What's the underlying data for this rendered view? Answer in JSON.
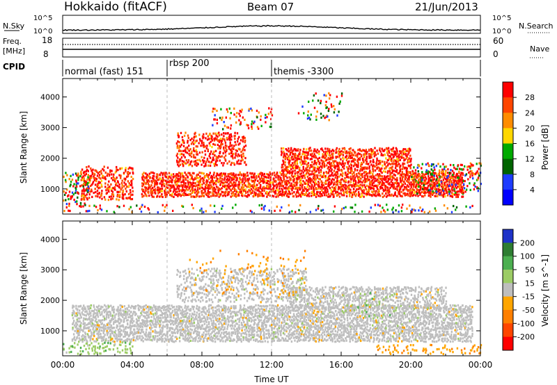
{
  "header": {
    "station": "Hokkaido (fitACF)",
    "beam": "Beam 07",
    "date": "21/Jun/2013"
  },
  "noise_panel": {
    "left_label": "N.Sky",
    "left_ticks": [
      "10^5",
      "10^0"
    ],
    "right_ticks": [
      "10^5",
      "10^0"
    ],
    "right_label": "N.Search"
  },
  "freq_panel": {
    "left_label_1": "Freq.",
    "left_label_2": "[MHz]",
    "left_ticks": [
      "18",
      "8"
    ],
    "right_ticks": [
      "60",
      "0"
    ],
    "right_label": "Nave"
  },
  "cpid_panel": {
    "label": "CPID",
    "segments": [
      {
        "label": "normal (fast) 151",
        "start_hour": 0
      },
      {
        "label": "rbsp 200",
        "start_hour": 6
      },
      {
        "label": "themis -3300",
        "start_hour": 12
      }
    ]
  },
  "chart_data": [
    {
      "type": "heatmap",
      "name": "power",
      "ylabel": "Slant Range [km]",
      "yticks": [
        1000,
        2000,
        3000,
        4000
      ],
      "ylim": [
        180,
        4600
      ],
      "xlim": [
        0,
        24
      ],
      "colorbar_label": "Power [dB]",
      "colorbar_ticks": [
        "28",
        "24",
        "20",
        "16",
        "12",
        "8",
        "4"
      ],
      "colorbar_colors": [
        "#ff0000",
        "#ff4500",
        "#ff8c00",
        "#ffd700",
        "#00aa00",
        "#006400",
        "#1e3cff",
        "#0000ff"
      ],
      "blobs": [
        {
          "t0": 4.5,
          "t1": 23.0,
          "r0": 700,
          "r1": 1500,
          "density": 0.9,
          "level": "strong"
        },
        {
          "t0": 1.0,
          "t1": 4.0,
          "r0": 600,
          "r1": 1700,
          "density": 0.55,
          "level": "strong"
        },
        {
          "t0": 6.5,
          "t1": 10.5,
          "r0": 1700,
          "r1": 2800,
          "density": 0.55,
          "level": "strong"
        },
        {
          "t0": 12.5,
          "t1": 20.0,
          "r0": 1500,
          "r1": 2300,
          "density": 0.8,
          "level": "strong"
        },
        {
          "t0": 0.0,
          "t1": 1.5,
          "r0": 400,
          "r1": 1500,
          "density": 0.4,
          "level": "weak"
        },
        {
          "t0": 8.5,
          "t1": 12.0,
          "r0": 2900,
          "r1": 3600,
          "density": 0.2,
          "level": "weak"
        },
        {
          "t0": 13.5,
          "t1": 16.0,
          "r0": 3200,
          "r1": 4100,
          "density": 0.12,
          "level": "weak"
        },
        {
          "t0": 20.0,
          "t1": 24.0,
          "r0": 800,
          "r1": 1800,
          "density": 0.35,
          "level": "weak"
        },
        {
          "t0": 0.0,
          "t1": 24.0,
          "r0": 200,
          "r1": 450,
          "density": 0.2,
          "level": "weak"
        }
      ]
    },
    {
      "type": "heatmap",
      "name": "velocity",
      "ylabel": "Slant Range [km]",
      "yticks": [
        1000,
        2000,
        3000,
        4000
      ],
      "ylim": [
        180,
        4600
      ],
      "xlim": [
        0,
        24
      ],
      "xlabel": "Time UT",
      "xticks": [
        "00:00",
        "04:00",
        "08:00",
        "12:00",
        "16:00",
        "20:00",
        "00:00"
      ],
      "colorbar_label": "Velocity [m s^-1]",
      "colorbar_ticks": [
        "200",
        "100",
        "50",
        "15",
        "-15",
        "-50",
        "-100",
        "-200"
      ],
      "colorbar_colors": [
        "#1e32c8",
        "#2e7d32",
        "#4caf50",
        "#9ccc65",
        "#bebebe",
        "#ffa500",
        "#ff7f00",
        "#ff4500",
        "#ff0000"
      ],
      "blobs": [
        {
          "t0": 0.5,
          "t1": 23.5,
          "r0": 600,
          "r1": 1800,
          "density": 0.85,
          "level": "ground"
        },
        {
          "t0": 6.5,
          "t1": 14.0,
          "r0": 1900,
          "r1": 3000,
          "density": 0.45,
          "level": "ground"
        },
        {
          "t0": 13.0,
          "t1": 22.0,
          "r0": 1700,
          "r1": 2400,
          "density": 0.6,
          "level": "ground"
        },
        {
          "t0": 0.0,
          "t1": 4.0,
          "r0": 200,
          "r1": 600,
          "density": 0.35,
          "level": "green"
        },
        {
          "t0": 16.0,
          "t1": 19.0,
          "r0": 1400,
          "r1": 2200,
          "density": 0.12,
          "level": "green"
        },
        {
          "t0": 7.0,
          "t1": 14.0,
          "r0": 2000,
          "r1": 3600,
          "density": 0.05,
          "level": "orange"
        },
        {
          "t0": 18.0,
          "t1": 24.0,
          "r0": 200,
          "r1": 500,
          "density": 0.25,
          "level": "orange"
        }
      ]
    }
  ]
}
